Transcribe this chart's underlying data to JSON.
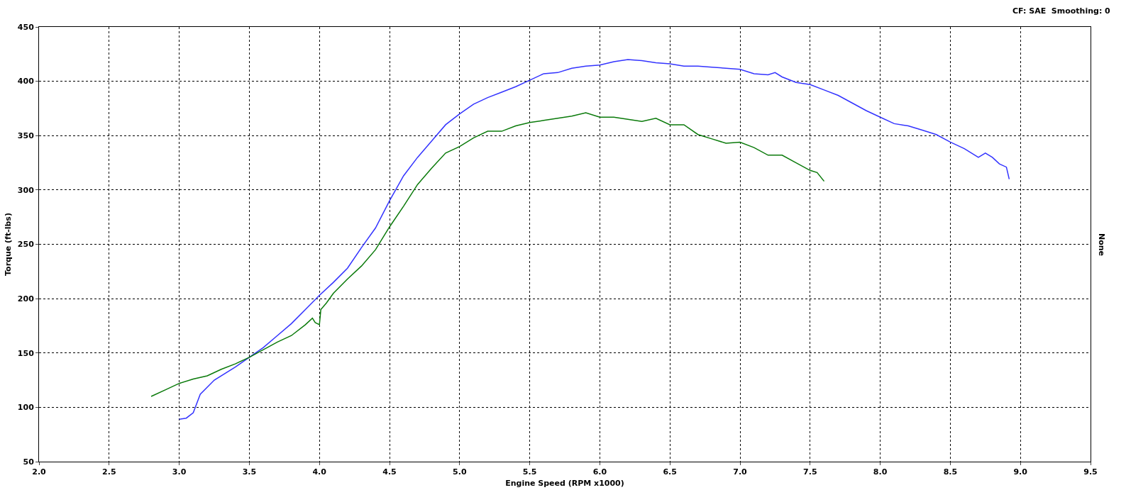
{
  "chart_data": {
    "type": "line",
    "xlabel": "Engine Speed (RPM x1000)",
    "ylabel": "Torque (ft-lbs)",
    "y2label": "None",
    "annotations": [
      "CF: SAE  Smoothing: 0"
    ],
    "xlim": [
      2.0,
      9.5
    ],
    "xticks": [
      {
        "value": 2,
        "label": "2.0"
      },
      2.5,
      {
        "value": 3,
        "label": "3.0"
      },
      3.5,
      {
        "value": 4,
        "label": "4.0"
      },
      4.5,
      {
        "value": 5,
        "label": "5.0"
      },
      5.5,
      {
        "value": 6,
        "label": "6.0"
      },
      6.5,
      {
        "value": 7,
        "label": "7.0"
      },
      7.5,
      {
        "value": 8,
        "label": "8.0"
      },
      8.5,
      {
        "value": 9,
        "label": "9.0"
      },
      9.5
    ],
    "ylim": [
      50,
      450
    ],
    "yticks": [
      50,
      100,
      150,
      200,
      250,
      300,
      350,
      400,
      450
    ],
    "grid": true,
    "marker": "none",
    "line_style": "solid",
    "series": [
      {
        "color": "#3333ff",
        "x": [
          3.0,
          3.05,
          3.1,
          3.15,
          3.25,
          3.4,
          3.5,
          3.6,
          3.7,
          3.8,
          3.9,
          4.0,
          4.1,
          4.2,
          4.3,
          4.4,
          4.5,
          4.6,
          4.7,
          4.8,
          4.9,
          5.0,
          5.1,
          5.2,
          5.3,
          5.4,
          5.5,
          5.6,
          5.7,
          5.8,
          5.9,
          6.0,
          6.1,
          6.2,
          6.3,
          6.4,
          6.5,
          6.6,
          6.7,
          6.8,
          6.9,
          7.0,
          7.1,
          7.2,
          7.25,
          7.3,
          7.4,
          7.5,
          7.6,
          7.7,
          7.8,
          7.9,
          8.0,
          8.1,
          8.2,
          8.3,
          8.4,
          8.5,
          8.6,
          8.7,
          8.75,
          8.8,
          8.85,
          8.9,
          8.92
        ],
        "values": [
          89,
          90,
          95,
          112,
          125,
          137,
          146,
          155,
          166,
          177,
          190,
          203,
          215,
          228,
          247,
          265,
          290,
          313,
          330,
          345,
          360,
          370,
          379,
          385,
          390,
          395,
          401,
          407,
          408,
          412,
          414,
          415,
          418,
          420,
          419,
          417,
          416,
          414,
          414,
          413,
          412,
          411,
          407,
          406,
          408,
          404,
          399,
          397,
          392,
          387,
          380,
          373,
          367,
          361,
          359,
          355,
          351,
          344,
          338,
          330,
          334,
          330,
          324,
          321,
          310
        ]
      },
      {
        "color": "#0a7a0a",
        "x": [
          2.8,
          2.9,
          3.0,
          3.1,
          3.2,
          3.3,
          3.4,
          3.5,
          3.6,
          3.7,
          3.8,
          3.9,
          3.95,
          3.97,
          4.0,
          4.01,
          4.05,
          4.1,
          4.2,
          4.3,
          4.4,
          4.5,
          4.6,
          4.7,
          4.8,
          4.9,
          5.0,
          5.1,
          5.2,
          5.3,
          5.4,
          5.5,
          5.6,
          5.7,
          5.8,
          5.9,
          6.0,
          6.1,
          6.2,
          6.3,
          6.4,
          6.5,
          6.6,
          6.7,
          6.8,
          6.9,
          7.0,
          7.1,
          7.2,
          7.3,
          7.4,
          7.5,
          7.55,
          7.6
        ],
        "values": [
          110,
          116,
          122,
          126,
          129,
          135,
          140,
          146,
          153,
          160,
          166,
          176,
          182,
          178,
          176,
          190,
          196,
          205,
          218,
          230,
          245,
          266,
          285,
          305,
          320,
          334,
          340,
          348,
          354,
          354,
          359,
          362,
          364,
          366,
          368,
          371,
          367,
          367,
          365,
          363,
          366,
          360,
          360,
          351,
          347,
          343,
          344,
          339,
          332,
          332,
          325,
          318,
          316,
          308
        ]
      }
    ]
  }
}
